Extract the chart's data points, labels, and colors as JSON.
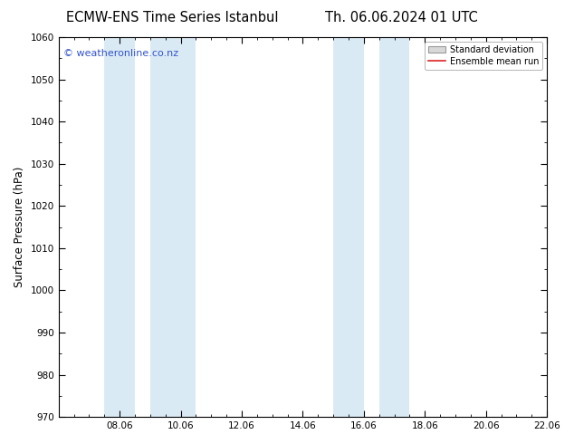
{
  "title_left": "ECMW-ENS Time Series Istanbul",
  "title_right": "Th. 06.06.2024 01 UTC",
  "ylabel": "Surface Pressure (hPa)",
  "ylim": [
    970,
    1060
  ],
  "yticks": [
    970,
    980,
    990,
    1000,
    1010,
    1020,
    1030,
    1040,
    1050,
    1060
  ],
  "xlim": [
    0,
    16
  ],
  "xtick_labels": [
    "08.06",
    "10.06",
    "12.06",
    "14.06",
    "16.06",
    "18.06",
    "20.06",
    "22.06"
  ],
  "xtick_positions": [
    2,
    4,
    6,
    8,
    10,
    12,
    14,
    16
  ],
  "shaded_regions": [
    {
      "x_start": 1.5,
      "x_end": 2.5
    },
    {
      "x_start": 3.0,
      "x_end": 4.5
    },
    {
      "x_start": 9.0,
      "x_end": 10.0
    },
    {
      "x_start": 10.5,
      "x_end": 11.5
    }
  ],
  "shaded_color": "#daeaf5",
  "watermark_text": "© weatheronline.co.nz",
  "watermark_color": "#3355cc",
  "legend_std_label": "Standard deviation",
  "legend_ens_label": "Ensemble mean run",
  "legend_std_facecolor": "#d8d8d8",
  "legend_std_edgecolor": "#999999",
  "legend_ens_color": "#dd2222",
  "background_color": "#ffffff",
  "axis_bg_color": "#ffffff",
  "spine_color": "#000000",
  "tick_color": "#000000",
  "title_fontsize": 10.5,
  "label_fontsize": 8.5,
  "tick_fontsize": 7.5,
  "watermark_fontsize": 8,
  "legend_fontsize": 7
}
